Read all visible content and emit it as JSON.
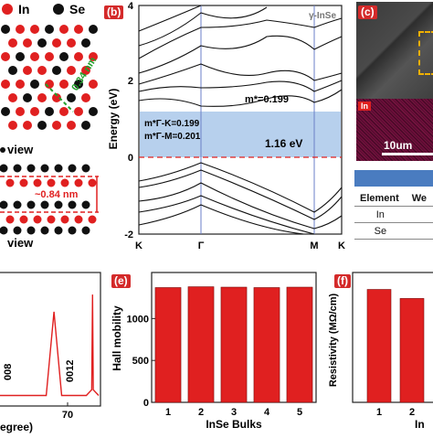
{
  "panel_a": {
    "legend": [
      {
        "label": "In",
        "color": "#e02020"
      },
      {
        "label": "Se",
        "color": "#111111"
      }
    ],
    "top_view_label": "view",
    "side_view_label": "view",
    "spacing_top": "0.34 nm",
    "spacing_side": "~0.84 nm"
  },
  "panel_b": {
    "label": "(b)",
    "tag": "γ-InSe",
    "ylabel": "Energy (eV)",
    "yticks": [
      "4",
      "2",
      "0",
      "-2"
    ],
    "kpoints": [
      "K",
      "Γ",
      "M",
      "K"
    ],
    "mass_main": "m*=0.199",
    "mass_gk": "m*Γ-K=0.199",
    "mass_gm": "m*Γ-M=0.201",
    "gap": "1.16 eV"
  },
  "panel_c": {
    "label": "(c)",
    "map_element": "In",
    "scale_bar": "10um",
    "table": {
      "headers": [
        "Element",
        "We"
      ],
      "rows": [
        [
          "In",
          ""
        ],
        [
          "Se",
          ""
        ]
      ]
    }
  },
  "panel_d": {
    "peaks": [
      "008",
      "0012"
    ],
    "xtick": "70",
    "xlabel_fragment": "egree)"
  },
  "panel_e": {
    "label": "(e)",
    "ylabel": "Hall mobility",
    "xlabel": "InSe Bulks"
  },
  "panel_f": {
    "label": "(f)",
    "ylabel": "Resistivity (MΩ/cm)",
    "xlabel_fragment": "In"
  },
  "chart_data": [
    {
      "type": "bar",
      "panel": "e",
      "categories": [
        "1",
        "2",
        "3",
        "4",
        "5"
      ],
      "values": [
        1370,
        1380,
        1375,
        1370,
        1375
      ],
      "ylabel": "Hall mobility",
      "xlabel": "InSe Bulks",
      "yticks": [
        0,
        500,
        1000
      ],
      "ylim": [
        0,
        1550
      ],
      "color": "#e02020"
    },
    {
      "type": "bar",
      "panel": "f",
      "categories": [
        "1",
        "2"
      ],
      "values": [
        1.0,
        0.92
      ],
      "ylabel": "Resistivity (MΩ/cm)",
      "xlabel": "In",
      "ylim": [
        0,
        1.15
      ],
      "color": "#e02020"
    },
    {
      "type": "line",
      "panel": "d",
      "x": [
        10,
        20,
        30,
        40,
        45,
        50,
        60,
        66,
        69.5,
        70,
        70.5,
        74
      ],
      "y": [
        0.03,
        0.03,
        0.03,
        0.03,
        0.32,
        0.03,
        0.03,
        0.03,
        0.05,
        0.38,
        0.05,
        0.03
      ],
      "peak_labels": [
        "008",
        "0012"
      ],
      "xticks": [
        70
      ],
      "color": "#e02020"
    }
  ]
}
